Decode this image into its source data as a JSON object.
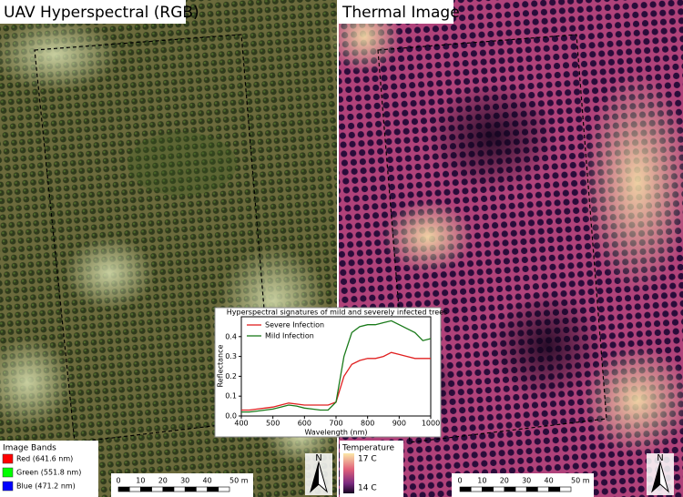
{
  "panels": [
    {
      "title": "UAV Hyperspectral (RGB)"
    },
    {
      "title": "Thermal Image"
    }
  ],
  "band_legend": {
    "title": "Image Bands",
    "items": [
      {
        "label": "Red (641.6 nm)",
        "color": "#ff0000"
      },
      {
        "label": "Green (551.8 nm)",
        "color": "#00ff00"
      },
      {
        "label": "Blue (471.2 nm)",
        "color": "#0000ff"
      }
    ]
  },
  "temperature_legend": {
    "title": "Temperature",
    "high": "17 C",
    "low": "14 C"
  },
  "scale_bars": [
    {
      "labels": [
        "0",
        "10",
        "20",
        "30",
        "40",
        "50 m"
      ]
    },
    {
      "labels": [
        "0",
        "10",
        "20",
        "30",
        "40",
        "50 m"
      ]
    }
  ],
  "north_arrows": [
    "N",
    "N"
  ],
  "chart_data": {
    "type": "line",
    "title": "Hyperspectral signatures of mild and severely infected trees",
    "x_label": "Wavelength (nm)",
    "y_label": "Reflectance",
    "x": [
      400,
      425,
      450,
      475,
      500,
      525,
      550,
      575,
      600,
      625,
      650,
      675,
      700,
      725,
      750,
      775,
      800,
      825,
      850,
      875,
      900,
      925,
      950,
      975,
      1000
    ],
    "series": [
      {
        "name": "Severe Infection",
        "color": "#e02020",
        "values": [
          0.03,
          0.03,
          0.035,
          0.04,
          0.045,
          0.055,
          0.065,
          0.06,
          0.055,
          0.055,
          0.055,
          0.055,
          0.07,
          0.2,
          0.26,
          0.28,
          0.29,
          0.29,
          0.3,
          0.32,
          0.31,
          0.3,
          0.29,
          0.29,
          0.29
        ]
      },
      {
        "name": "Mild Infection",
        "color": "#1a7a1a",
        "values": [
          0.02,
          0.02,
          0.025,
          0.03,
          0.035,
          0.045,
          0.055,
          0.05,
          0.04,
          0.035,
          0.03,
          0.03,
          0.07,
          0.3,
          0.42,
          0.45,
          0.46,
          0.46,
          0.47,
          0.48,
          0.46,
          0.44,
          0.42,
          0.38,
          0.39
        ]
      }
    ],
    "xlim": [
      400,
      1000
    ],
    "ylim": [
      0,
      0.5
    ],
    "xticks": [
      400,
      500,
      600,
      700,
      800,
      900,
      1000
    ],
    "yticks": [
      {
        "value": 0,
        "label": "0.0"
      },
      0.1,
      0.2,
      0.3,
      0.4
    ],
    "legend": "upper left"
  }
}
